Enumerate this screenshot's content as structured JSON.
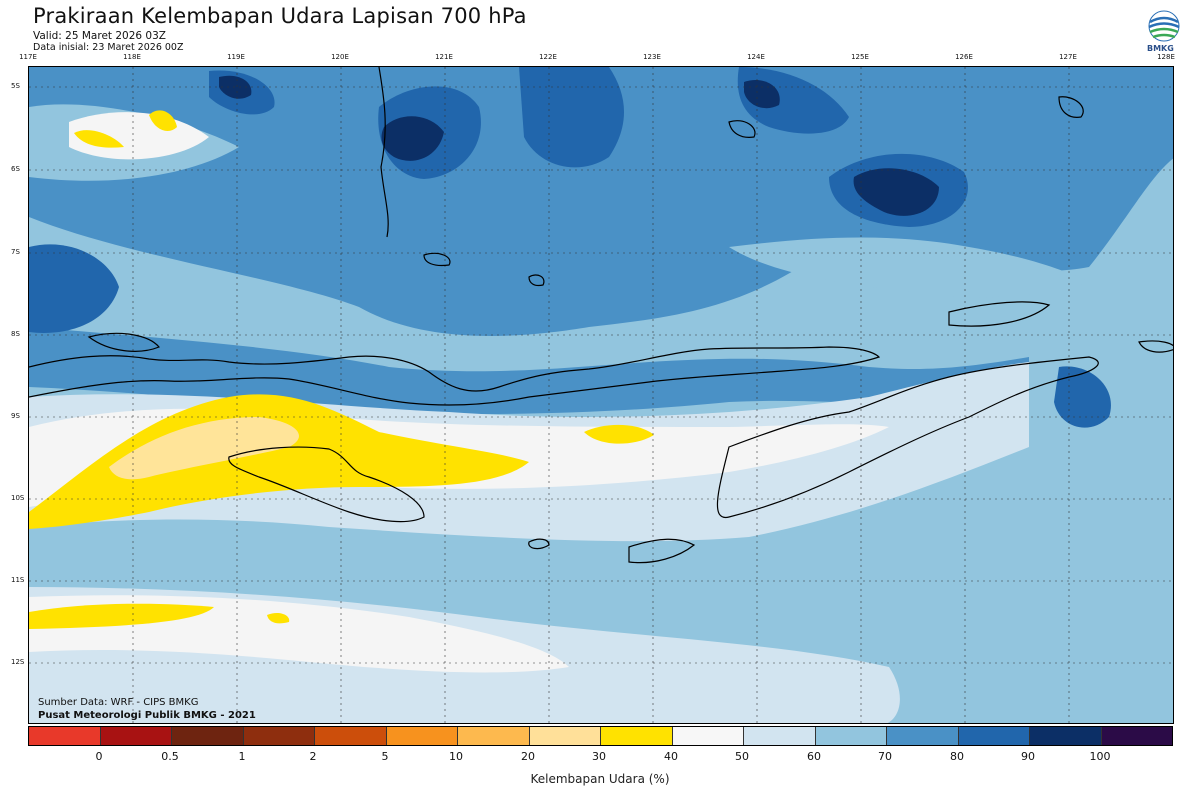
{
  "header": {
    "title": "Prakiraan Kelembapan Udara Lapisan 700 hPa",
    "valid": "Valid: 25 Maret 2026 03Z",
    "initial": "Data inisial: 23 Maret 2026 00Z"
  },
  "logo": {
    "text": "BMKG"
  },
  "map": {
    "longitude_labels": [
      "117E",
      "118E",
      "119E",
      "120E",
      "121E",
      "122E",
      "123E",
      "124E",
      "125E",
      "126E",
      "127E",
      "128E"
    ],
    "latitude_labels": [
      "5S",
      "6S",
      "7S",
      "8S",
      "9S",
      "10S",
      "11S",
      "12S"
    ],
    "colors": {
      "humid_40_50": "#f5f5f5",
      "humid_50_60": "#d2e4f0",
      "humid_60_70": "#92c5de",
      "humid_70_80": "#4a91c6",
      "humid_80_90": "#2166ac",
      "humid_90_100": "#0c2f66",
      "dry_30_40": "#ffe200",
      "dry_20_30": "#ffe499",
      "coast": "#000000"
    }
  },
  "credits": {
    "source": "Sumber Data: WRF - CIPS BMKG",
    "center": "Pusat Meteorologi Publik BMKG - 2021"
  },
  "colorbar": {
    "colors": [
      "#e8392a",
      "#a81212",
      "#6e2410",
      "#8e2e0e",
      "#cc4e0b",
      "#f7921e",
      "#fdb94e",
      "#ffe099",
      "#ffe200",
      "#f7f7f7",
      "#d2e4f0",
      "#92c5de",
      "#4a91c6",
      "#2166ac",
      "#0c2f66",
      "#2b0b47"
    ],
    "ticks": [
      "0",
      "0.5",
      "1",
      "2",
      "5",
      "10",
      "20",
      "30",
      "40",
      "50",
      "60",
      "70",
      "80",
      "90",
      "100"
    ],
    "label": "Kelembapan Udara (%)"
  }
}
